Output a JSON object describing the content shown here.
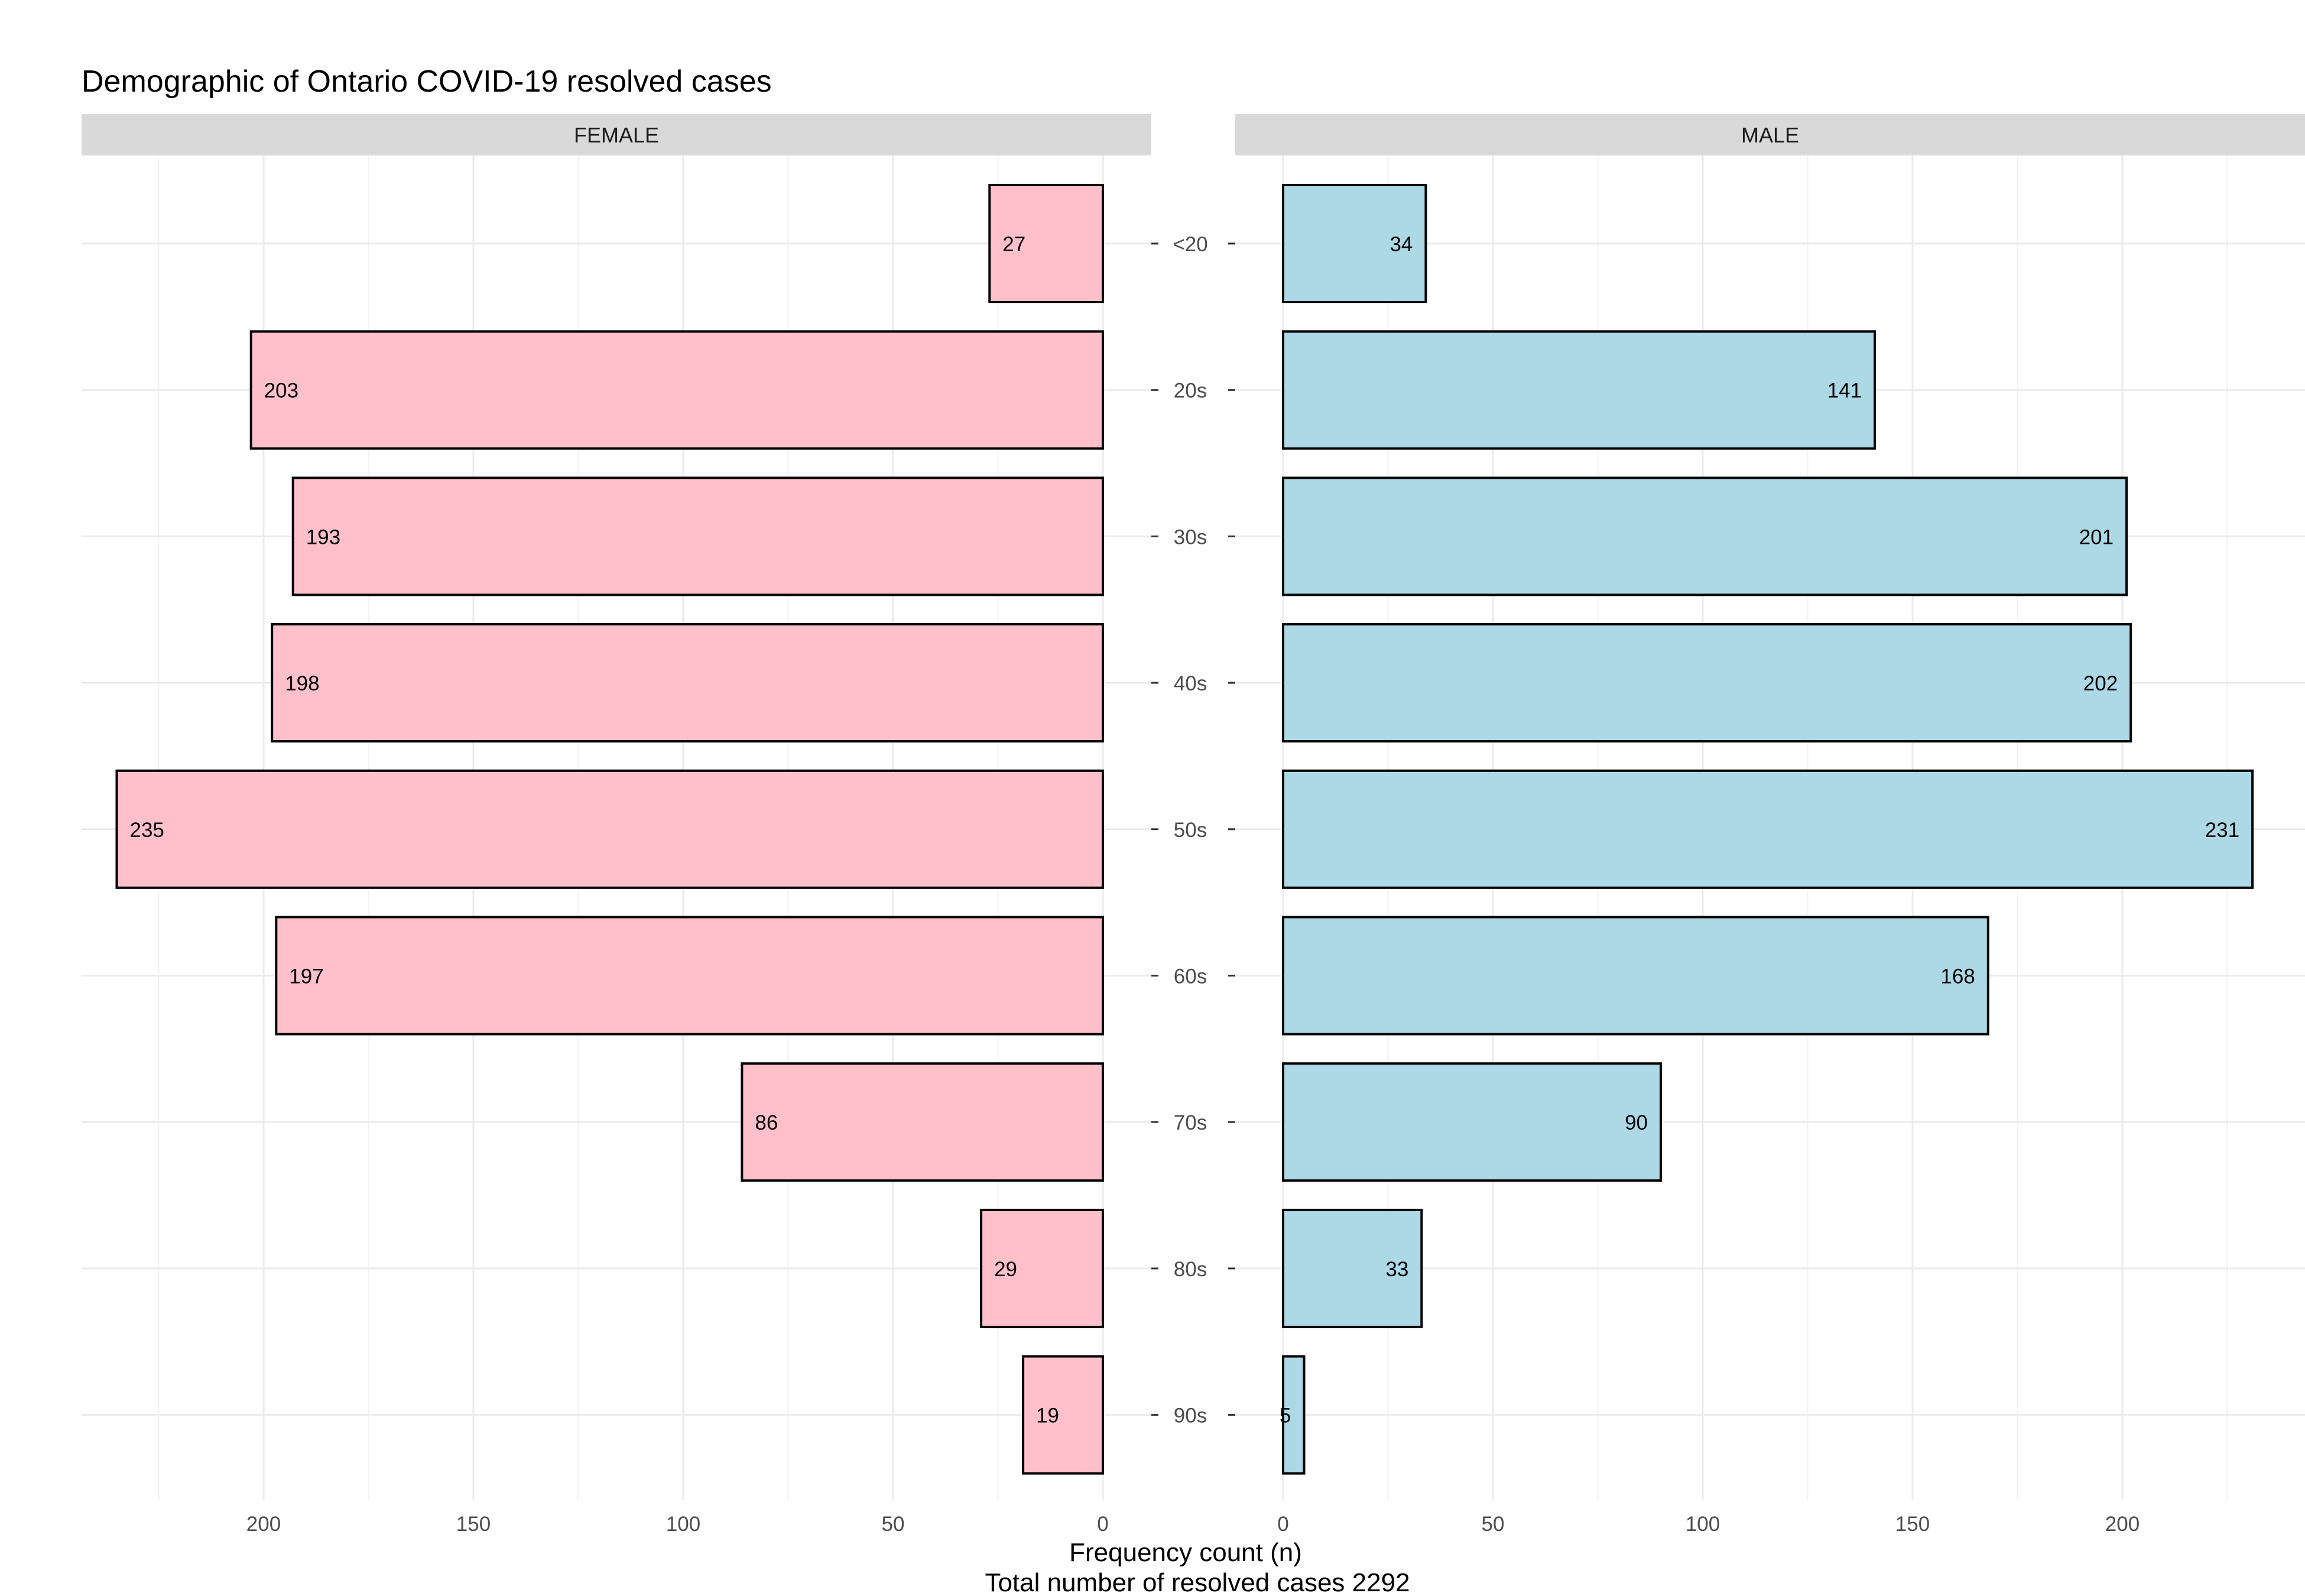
{
  "chart_data": {
    "type": "bar",
    "orientation": "horizontal",
    "layout": "population-pyramid",
    "title": "Demographic of Ontario COVID-19 resolved cases",
    "categories": [
      "<20",
      "20s",
      "30s",
      "40s",
      "50s",
      "60s",
      "70s",
      "80s",
      "90s"
    ],
    "series": [
      {
        "name": "FEMALE",
        "values": [
          27,
          203,
          193,
          198,
          235,
          197,
          86,
          29,
          19
        ],
        "color": "#ffc0cb"
      },
      {
        "name": "MALE",
        "values": [
          34,
          141,
          201,
          202,
          231,
          168,
          90,
          33,
          5
        ],
        "color": "#add8e6"
      }
    ],
    "xlabel": "Frequency count (n)",
    "caption": "Total number of resolved cases  2292",
    "x_ticks": [
      0,
      50,
      100,
      150,
      200
    ],
    "xlim": [
      0,
      240
    ],
    "grid": true,
    "bar_outline_color": "#000000",
    "strip_color": "#d9d9d9"
  }
}
